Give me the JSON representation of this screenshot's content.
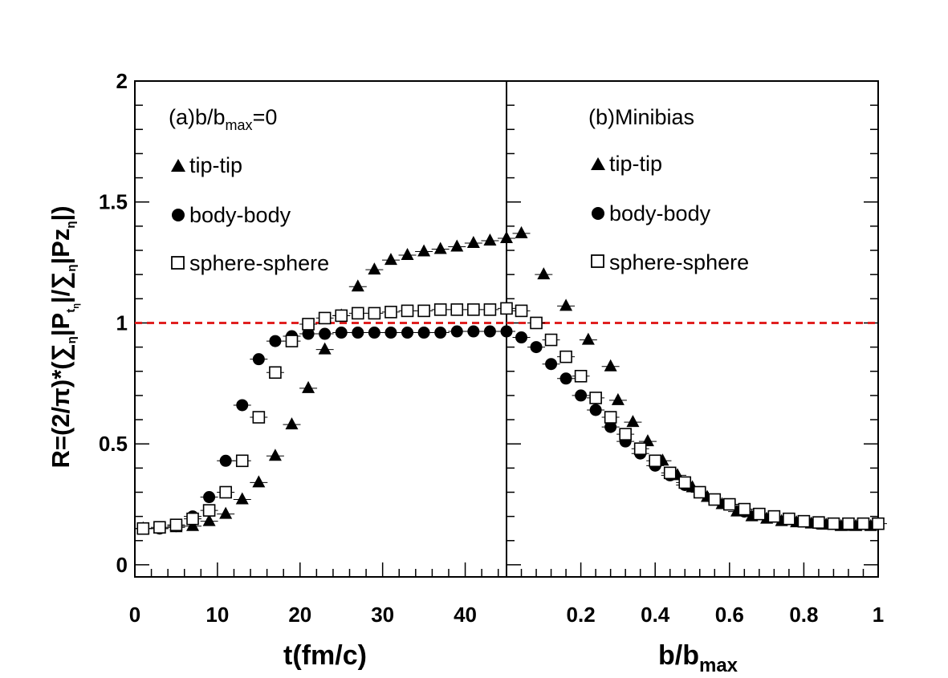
{
  "chart_data": [
    {
      "type": "scatter",
      "panel_label": "(a)b/b",
      "panel_label_sub": "max",
      "panel_label_tail": "=0",
      "xlabel": "t(fm/c)",
      "ylabel_main": "R=(2/π)*(∑",
      "ylabel_rest": "|P",
      "ylabel_t": "t",
      "ylabel_eta": "η",
      "ylabel_div": "|/∑",
      "ylabel_pz": "|Pz",
      "ylabel_close": "|)",
      "xlim": [
        0,
        45
      ],
      "ylim": [
        -0.05,
        2
      ],
      "xticks": [
        "0",
        "10",
        "20",
        "30",
        "40"
      ],
      "xtick_values": [
        0,
        10,
        20,
        30,
        40
      ],
      "yticks": [
        "0",
        "0.5",
        "1",
        "1.5",
        "2"
      ],
      "ytick_values": [
        0,
        0.5,
        1,
        1.5,
        2
      ],
      "reference_line": 1,
      "reference_color": "#e02020",
      "series": [
        {
          "name": "tip-tip",
          "marker": "triangle",
          "x": [
            1,
            3,
            5,
            7,
            9,
            11,
            13,
            15,
            17,
            19,
            21,
            23,
            25,
            27,
            29,
            31,
            33,
            35,
            37,
            39,
            41,
            43,
            45
          ],
          "y": [
            0.15,
            0.15,
            0.155,
            0.16,
            0.18,
            0.21,
            0.27,
            0.34,
            0.45,
            0.58,
            0.73,
            0.89,
            1.03,
            1.15,
            1.22,
            1.26,
            1.28,
            1.295,
            1.305,
            1.315,
            1.33,
            1.34,
            1.35
          ]
        },
        {
          "name": "body-body",
          "marker": "circle",
          "x": [
            1,
            3,
            5,
            7,
            9,
            11,
            13,
            15,
            17,
            19,
            21,
            23,
            25,
            27,
            29,
            31,
            33,
            35,
            37,
            39,
            41,
            43,
            45
          ],
          "y": [
            0.15,
            0.15,
            0.16,
            0.2,
            0.28,
            0.43,
            0.66,
            0.85,
            0.925,
            0.945,
            0.955,
            0.955,
            0.96,
            0.96,
            0.96,
            0.96,
            0.96,
            0.96,
            0.96,
            0.965,
            0.965,
            0.965,
            0.965
          ]
        },
        {
          "name": "sphere-sphere",
          "marker": "square",
          "x": [
            1,
            3,
            5,
            7,
            9,
            11,
            13,
            15,
            17,
            19,
            21,
            23,
            25,
            27,
            29,
            31,
            33,
            35,
            37,
            39,
            41,
            43,
            45
          ],
          "y": [
            0.15,
            0.155,
            0.165,
            0.19,
            0.225,
            0.3,
            0.43,
            0.61,
            0.795,
            0.925,
            0.995,
            1.02,
            1.03,
            1.04,
            1.04,
            1.045,
            1.05,
            1.05,
            1.055,
            1.055,
            1.055,
            1.055,
            1.06
          ]
        }
      ]
    },
    {
      "type": "scatter",
      "panel_label": "(b)Minibias",
      "xlabel": "b/b",
      "xlabel_sub": "max",
      "xlim": [
        0,
        1
      ],
      "ylim": [
        -0.05,
        2
      ],
      "xticks": [
        "0.2",
        "0.4",
        "0.6",
        "0.8",
        "1"
      ],
      "xtick_values": [
        0.2,
        0.4,
        0.6,
        0.8,
        1
      ],
      "reference_line": 1,
      "series": [
        {
          "name": "tip-tip",
          "marker": "triangle",
          "x": [
            0.04,
            0.1,
            0.16,
            0.22,
            0.28,
            0.3,
            0.34,
            0.38,
            0.42,
            0.46,
            0.5,
            0.54,
            0.58,
            0.62,
            0.66,
            0.7,
            0.74,
            0.78,
            0.82,
            0.86,
            0.9,
            0.94,
            0.98
          ],
          "y": [
            1.37,
            1.2,
            1.07,
            0.93,
            0.82,
            0.68,
            0.59,
            0.51,
            0.43,
            0.37,
            0.32,
            0.28,
            0.25,
            0.22,
            0.2,
            0.19,
            0.18,
            0.175,
            0.17,
            0.165,
            0.16,
            0.16,
            0.16
          ]
        },
        {
          "name": "body-body",
          "marker": "circle",
          "x": [
            0.04,
            0.08,
            0.12,
            0.16,
            0.2,
            0.24,
            0.28,
            0.32,
            0.36,
            0.4,
            0.44,
            0.48,
            0.52,
            0.56,
            0.6,
            0.64,
            0.68,
            0.72,
            0.76,
            0.8,
            0.84,
            0.88,
            0.92
          ],
          "y": [
            0.94,
            0.9,
            0.83,
            0.77,
            0.7,
            0.64,
            0.57,
            0.51,
            0.46,
            0.41,
            0.37,
            0.33,
            0.3,
            0.27,
            0.25,
            0.22,
            0.21,
            0.2,
            0.19,
            0.18,
            0.17,
            0.17,
            0.165
          ]
        },
        {
          "name": "sphere-sphere",
          "marker": "square",
          "x": [
            0.04,
            0.08,
            0.12,
            0.16,
            0.2,
            0.24,
            0.28,
            0.32,
            0.36,
            0.4,
            0.44,
            0.48,
            0.52,
            0.56,
            0.6,
            0.64,
            0.68,
            0.72,
            0.76,
            0.8,
            0.84,
            0.88,
            0.92,
            0.96,
            1.0
          ],
          "y": [
            1.05,
            1.0,
            0.93,
            0.86,
            0.78,
            0.69,
            0.61,
            0.54,
            0.48,
            0.43,
            0.38,
            0.34,
            0.3,
            0.27,
            0.25,
            0.23,
            0.21,
            0.2,
            0.19,
            0.18,
            0.175,
            0.17,
            0.17,
            0.17,
            0.17
          ]
        }
      ]
    }
  ]
}
